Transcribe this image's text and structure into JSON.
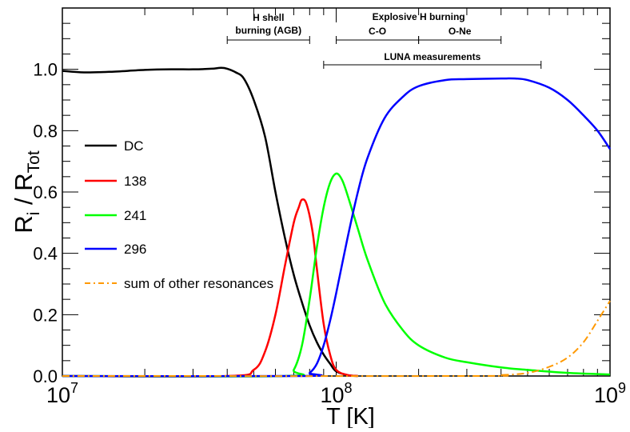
{
  "chart_data": {
    "type": "line",
    "xscale": "log",
    "xlim": [
      10000000,
      1000000000
    ],
    "ylim": [
      0.0,
      1.2
    ],
    "xlabel": "T [K]",
    "ylabel": {
      "base": "R",
      "sub_i": "i",
      "sep": " / ",
      "base2": "R",
      "sub_tot": "Tot"
    },
    "xticks": [
      {
        "value": 10000000,
        "base": "10",
        "exp": "7"
      },
      {
        "value": 100000000,
        "base": "10",
        "exp": "8"
      },
      {
        "value": 1000000000,
        "base": "10",
        "exp": "9"
      }
    ],
    "yticks": [
      {
        "value": 0.0,
        "label": "0.0"
      },
      {
        "value": 0.2,
        "label": "0.2"
      },
      {
        "value": 0.4,
        "label": "0.4"
      },
      {
        "value": 0.6,
        "label": "0.6"
      },
      {
        "value": 0.8,
        "label": "0.8"
      },
      {
        "value": 1.0,
        "label": "1.0"
      }
    ],
    "series": [
      {
        "name": "DC",
        "color": "#000000",
        "dash": "solid",
        "x": [
          10000000,
          12000000,
          15000000,
          20000000,
          25000000,
          30000000,
          35000000,
          38000000,
          40000000,
          43000000,
          46000000,
          50000000,
          55000000,
          60000000,
          65000000,
          70000000,
          75000000,
          80000000,
          85000000,
          90000000,
          95000000,
          100000000,
          110000000,
          120000000
        ],
        "y": [
          0.995,
          0.99,
          0.992,
          0.998,
          1.0,
          1.0,
          1.002,
          1.005,
          1.002,
          0.99,
          0.97,
          0.9,
          0.78,
          0.6,
          0.45,
          0.33,
          0.24,
          0.165,
          0.11,
          0.07,
          0.04,
          0.015,
          0.003,
          0.0
        ]
      },
      {
        "name": "138",
        "color": "#ff0000",
        "dash": "solid",
        "x": [
          10000000,
          40000000,
          50000000,
          55000000,
          60000000,
          65000000,
          70000000,
          73000000,
          75000000,
          78000000,
          82000000,
          85000000,
          90000000,
          95000000,
          100000000,
          110000000,
          120000000
        ],
        "y": [
          0.0,
          0.0,
          0.02,
          0.08,
          0.2,
          0.36,
          0.5,
          0.55,
          0.575,
          0.56,
          0.47,
          0.35,
          0.17,
          0.07,
          0.02,
          0.003,
          0.0
        ]
      },
      {
        "name": "241",
        "color": "#00ff00",
        "dash": "solid",
        "x": [
          10000000,
          65000000,
          70000000,
          75000000,
          80000000,
          85000000,
          90000000,
          95000000,
          100000000,
          105000000,
          110000000,
          120000000,
          130000000,
          150000000,
          175000000,
          200000000,
          250000000,
          300000000,
          400000000,
          500000000,
          700000000,
          1000000000
        ],
        "y": [
          0.0,
          0.0,
          0.02,
          0.1,
          0.25,
          0.42,
          0.55,
          0.63,
          0.66,
          0.64,
          0.59,
          0.48,
          0.38,
          0.24,
          0.15,
          0.1,
          0.06,
          0.045,
          0.028,
          0.02,
          0.01,
          0.005
        ]
      },
      {
        "name": "296",
        "color": "#0000ff",
        "dash": "solid",
        "x": [
          10000000,
          75000000,
          80000000,
          85000000,
          90000000,
          95000000,
          100000000,
          110000000,
          120000000,
          130000000,
          150000000,
          175000000,
          200000000,
          250000000,
          300000000,
          400000000,
          450000000,
          500000000,
          600000000,
          700000000,
          800000000,
          900000000,
          1000000000
        ],
        "y": [
          0.0,
          0.0,
          0.01,
          0.04,
          0.1,
          0.18,
          0.27,
          0.45,
          0.6,
          0.71,
          0.84,
          0.91,
          0.945,
          0.965,
          0.968,
          0.97,
          0.97,
          0.965,
          0.94,
          0.9,
          0.85,
          0.8,
          0.74
        ]
      },
      {
        "name": "sum of other resonances",
        "color": "#ff9900",
        "dash": "dashdot",
        "x": [
          10000000,
          300000000,
          400000000,
          500000000,
          600000000,
          700000000,
          800000000,
          900000000,
          1000000000
        ],
        "y": [
          0.0,
          0.0,
          0.003,
          0.01,
          0.03,
          0.06,
          0.11,
          0.18,
          0.245
        ]
      }
    ],
    "annotations": [
      {
        "lines": [
          "H shell",
          "burning (AGB)"
        ],
        "range": [
          40000000,
          80000000
        ]
      },
      {
        "lines": [
          "Explosive H burning"
        ]
      },
      {
        "lines": [
          "C-O"
        ],
        "range": [
          100000000,
          200000000
        ]
      },
      {
        "lines": [
          "O-Ne"
        ],
        "range": [
          200000000,
          400000000
        ]
      },
      {
        "lines": [
          "LUNA measurements"
        ],
        "range": [
          90000000,
          560000000
        ]
      }
    ],
    "legend": {
      "position": "left-middle",
      "entries": [
        "DC",
        "138",
        "241",
        "296",
        "sum of other resonances"
      ]
    }
  }
}
